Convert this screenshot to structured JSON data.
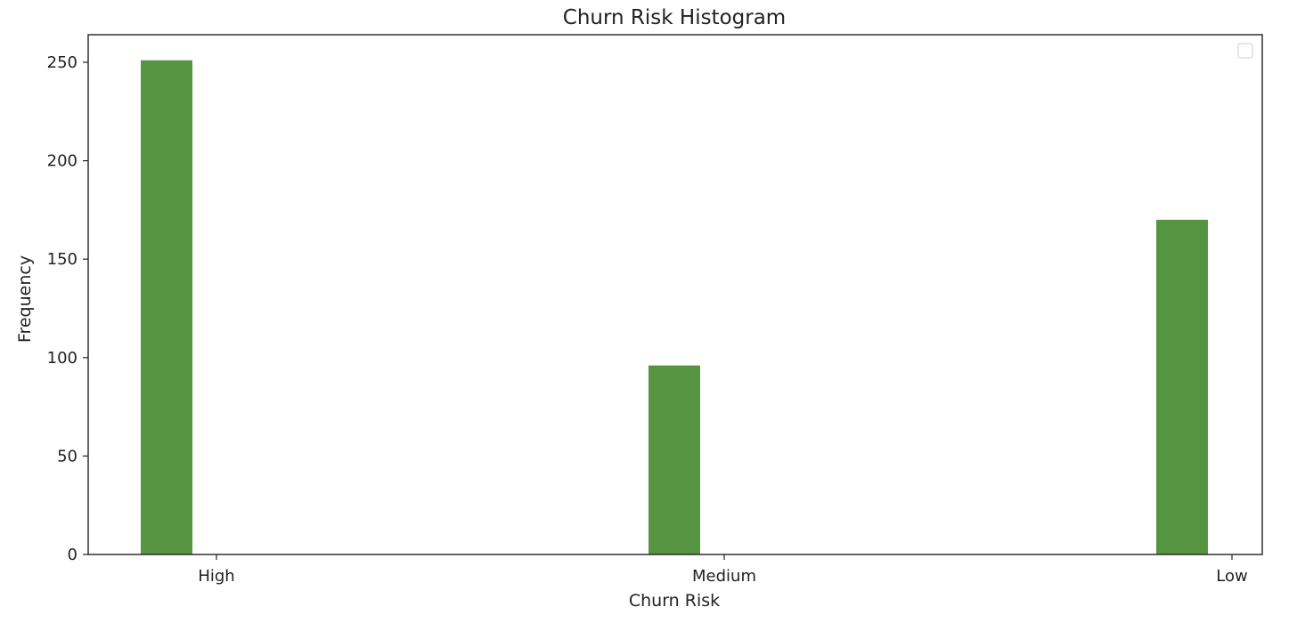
{
  "chart_data": {
    "type": "bar",
    "title": "Churn Risk Histogram",
    "xlabel": "Churn Risk",
    "ylabel": "Frequency",
    "categories": [
      "High",
      "Medium",
      "Low"
    ],
    "values": [
      251,
      96,
      170
    ],
    "ylim": [
      0,
      264
    ],
    "yticks": [
      0,
      50,
      100,
      150,
      200,
      250
    ],
    "grid": false,
    "legend": {
      "placement": "top-right",
      "entries": []
    },
    "bar_color": "#559441"
  }
}
